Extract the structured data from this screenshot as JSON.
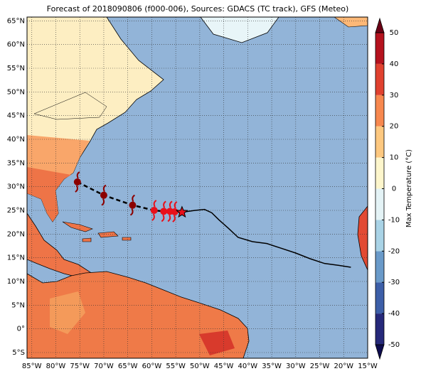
{
  "chart_data": {
    "type": "map",
    "title": "Forecast of 2018090806 (f000-006), Sources: GDACS (TC track), GFS (Meteo)",
    "xlim": [
      -86,
      -15
    ],
    "ylim": [
      -6.2,
      65.8
    ],
    "xticks": [
      {
        "value": -85,
        "label": "85°W"
      },
      {
        "value": -80,
        "label": "80°W"
      },
      {
        "value": -75,
        "label": "75°W"
      },
      {
        "value": -70,
        "label": "70°W"
      },
      {
        "value": -65,
        "label": "65°W"
      },
      {
        "value": -60,
        "label": "60°W"
      },
      {
        "value": -55,
        "label": "55°W"
      },
      {
        "value": -50,
        "label": "50°W"
      },
      {
        "value": -45,
        "label": "45°W"
      },
      {
        "value": -40,
        "label": "40°W"
      },
      {
        "value": -35,
        "label": "35°W"
      },
      {
        "value": -30,
        "label": "30°W"
      },
      {
        "value": -25,
        "label": "25°W"
      },
      {
        "value": -20,
        "label": "20°W"
      },
      {
        "value": -15,
        "label": "15°W"
      }
    ],
    "yticks": [
      {
        "value": -5,
        "label": "5°S"
      },
      {
        "value": 0,
        "label": "0°"
      },
      {
        "value": 5,
        "label": "5°N"
      },
      {
        "value": 10,
        "label": "10°N"
      },
      {
        "value": 15,
        "label": "15°N"
      },
      {
        "value": 20,
        "label": "20°N"
      },
      {
        "value": 25,
        "label": "25°N"
      },
      {
        "value": 30,
        "label": "30°N"
      },
      {
        "value": 35,
        "label": "35°N"
      },
      {
        "value": 40,
        "label": "40°N"
      },
      {
        "value": 45,
        "label": "45°N"
      },
      {
        "value": 50,
        "label": "50°N"
      },
      {
        "value": 55,
        "label": "55°N"
      },
      {
        "value": 60,
        "label": "60°N"
      },
      {
        "value": 65,
        "label": "65°N"
      }
    ],
    "grid": true,
    "forecast_track": {
      "lon": [
        -75.5,
        -70,
        -64,
        -59.5,
        -57.5,
        -56.2,
        -55.2,
        -53.7
      ],
      "lat": [
        31,
        28.2,
        26.1,
        25,
        24.8,
        24.8,
        24.7,
        24.6
      ],
      "colors": [
        "#8b0000",
        "#8b0000",
        "#8b0000",
        "#e8101a",
        "#e8101a",
        "#e8101a",
        "#e8101a",
        "#e8101a"
      ]
    },
    "observed_track": {
      "lon": [
        -53.7,
        -51,
        -49,
        -47.5,
        -46,
        -44,
        -42,
        -39,
        -36,
        -33,
        -30,
        -27,
        -24,
        -21,
        -18.5
      ],
      "lat": [
        24.6,
        25,
        25.2,
        24.5,
        23,
        21.2,
        19.3,
        18.4,
        18,
        17,
        16,
        14.8,
        13.8,
        13.4,
        13
      ]
    },
    "colorbar": {
      "label": "Max Temperature (°C)",
      "ticks": [
        -50,
        -40,
        -30,
        -20,
        -10,
        0,
        10,
        20,
        30,
        40,
        50
      ],
      "colors": [
        "#26297a",
        "#3d5fa8",
        "#6a9ac9",
        "#a9d3e6",
        "#e4f3f6",
        "#fdf6cc",
        "#fdc880",
        "#f7884f",
        "#e0412f",
        "#b5121e"
      ],
      "extend_colors": [
        "#0e0c4e",
        "#6b0015"
      ]
    }
  }
}
